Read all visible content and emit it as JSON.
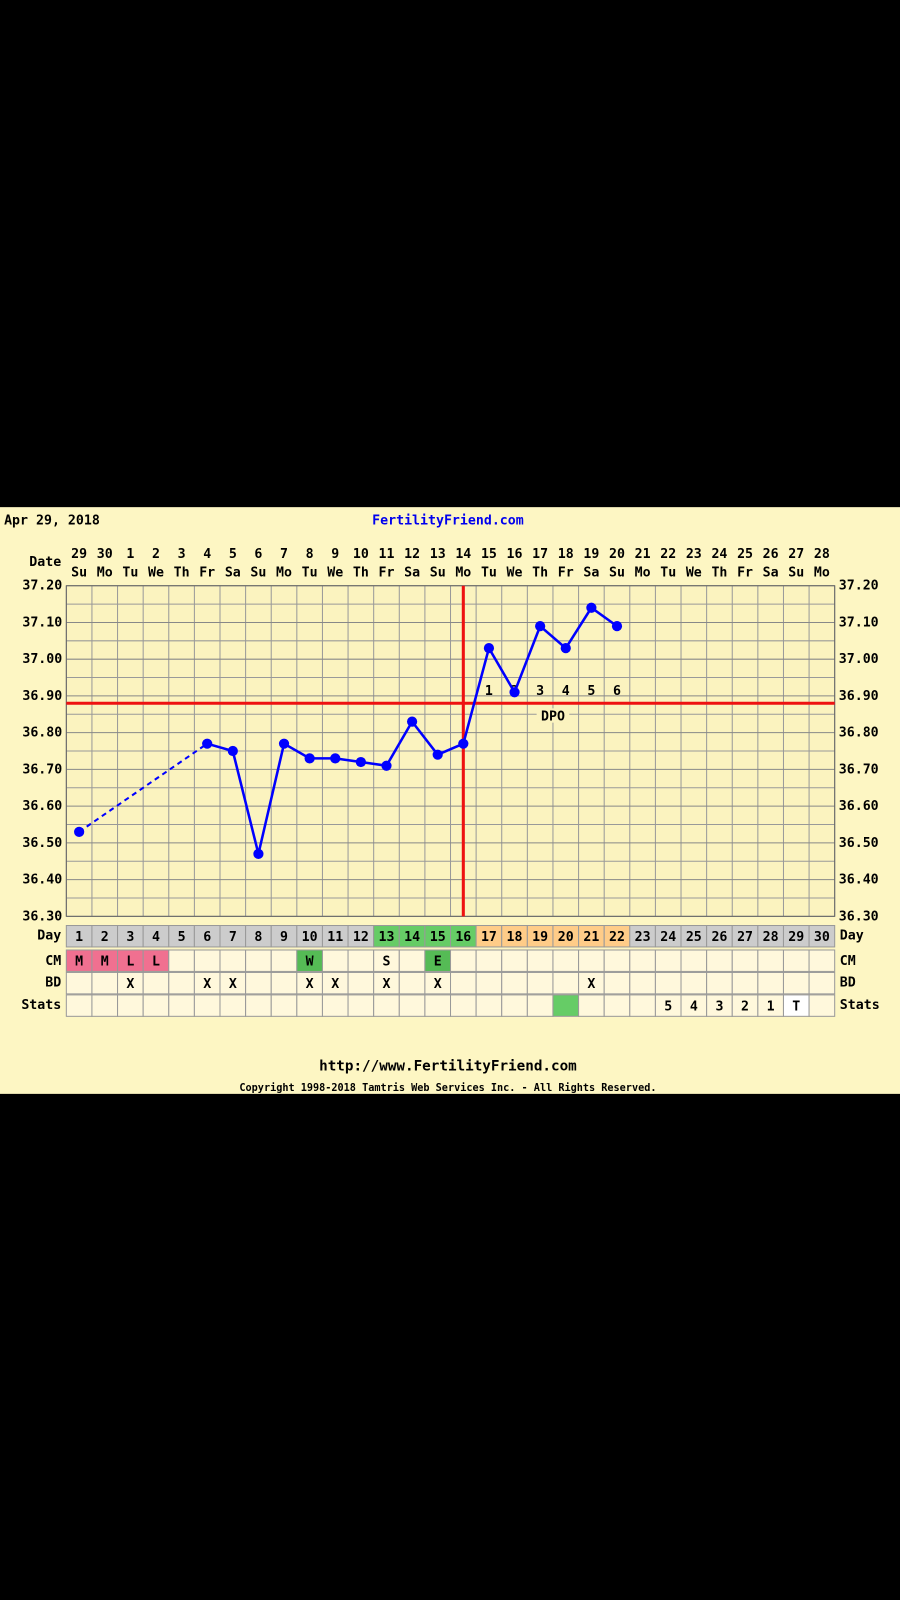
{
  "chart_data": {
    "type": "line",
    "date": "Apr 29, 2018",
    "title": "FertilityFriend.com",
    "dates": [
      "29",
      "30",
      "1",
      "2",
      "3",
      "4",
      "5",
      "6",
      "7",
      "8",
      "9",
      "10",
      "11",
      "12",
      "13",
      "14",
      "15",
      "16",
      "17",
      "18",
      "19",
      "20",
      "21",
      "22",
      "23",
      "24",
      "25",
      "26",
      "27",
      "28"
    ],
    "weekdays": [
      "Su",
      "Mo",
      "Tu",
      "We",
      "Th",
      "Fr",
      "Sa",
      "Su",
      "Mo",
      "Tu",
      "We",
      "Th",
      "Fr",
      "Sa",
      "Su",
      "Mo",
      "Tu",
      "We",
      "Th",
      "Fr",
      "Sa",
      "Su",
      "Mo",
      "Tu",
      "We",
      "Th",
      "Fr",
      "Sa",
      "Su",
      "Mo"
    ],
    "ylim": [
      36.3,
      37.2
    ],
    "yticks": [
      {
        "value": 36.3,
        "label": "36.30"
      },
      {
        "value": 36.4,
        "label": "36.40"
      },
      {
        "value": 36.5,
        "label": "36.50"
      },
      {
        "value": 36.6,
        "label": "36.60"
      },
      {
        "value": 36.7,
        "label": "36.70"
      },
      {
        "value": 36.8,
        "label": "36.80"
      },
      {
        "value": 36.9,
        "label": "36.90"
      },
      {
        "value": 37.0,
        "label": "37.00"
      },
      {
        "value": 37.1,
        "label": "37.10"
      },
      {
        "value": 37.2,
        "label": "37.20"
      }
    ],
    "grid": true,
    "series": [
      {
        "color": "#0000ff",
        "values": [
          36.53,
          null,
          null,
          null,
          null,
          36.77,
          36.75,
          36.47,
          36.77,
          36.73,
          36.73,
          36.72,
          36.71,
          36.83,
          36.74,
          36.77,
          37.03,
          36.91,
          37.09,
          37.03,
          37.14,
          37.09,
          null,
          null,
          null,
          null,
          null,
          null,
          null,
          null
        ]
      }
    ],
    "coverline": {
      "value": 36.88,
      "color": "#ee1111"
    },
    "ovulation_day": 16,
    "dpo": [
      null,
      null,
      null,
      null,
      null,
      null,
      null,
      null,
      null,
      null,
      null,
      null,
      null,
      null,
      null,
      null,
      1,
      2,
      3,
      4,
      5,
      6,
      null,
      null,
      null,
      null,
      null,
      null,
      null,
      null
    ],
    "dpo_label": "DPO",
    "row_labels": {
      "date": "Date",
      "day": "Day",
      "cm": "CM",
      "bd": "BD",
      "stats": "Stats"
    },
    "days": [
      1,
      2,
      3,
      4,
      5,
      6,
      7,
      8,
      9,
      10,
      11,
      12,
      13,
      14,
      15,
      16,
      17,
      18,
      19,
      20,
      21,
      22,
      23,
      24,
      25,
      26,
      27,
      28,
      29,
      30
    ],
    "day_colors": [
      "#cccccc",
      "#cccccc",
      "#cccccc",
      "#cccccc",
      "#cccccc",
      "#cccccc",
      "#cccccc",
      "#cccccc",
      "#cccccc",
      "#cccccc",
      "#cccccc",
      "#cccccc",
      "#66cc66",
      "#66cc66",
      "#66cc66",
      "#66cc66",
      "#ffcc88",
      "#ffcc88",
      "#ffcc88",
      "#ffcc88",
      "#ffcc88",
      "#ffcc88",
      "#cccccc",
      "#cccccc",
      "#cccccc",
      "#cccccc",
      "#cccccc",
      "#cccccc",
      "#cccccc",
      "#cccccc"
    ],
    "cm": [
      "M",
      "M",
      "L",
      "L",
      null,
      null,
      null,
      null,
      null,
      "W",
      null,
      null,
      "S",
      null,
      "E",
      null,
      null,
      null,
      null,
      null,
      null,
      null,
      null,
      null,
      null,
      null,
      null,
      null,
      null,
      null
    ],
    "cm_colors": [
      "#f07090",
      "#f07090",
      "#f07090",
      "#f07090",
      null,
      null,
      null,
      null,
      null,
      "#55bb55",
      null,
      null,
      null,
      null,
      "#55bb55",
      null,
      null,
      null,
      null,
      null,
      null,
      null,
      null,
      null,
      null,
      null,
      null,
      null,
      null,
      null
    ],
    "bd": [
      null,
      null,
      "X",
      null,
      null,
      "X",
      "X",
      null,
      null,
      "X",
      "X",
      null,
      "X",
      null,
      "X",
      null,
      null,
      null,
      null,
      null,
      "X",
      null,
      null,
      null,
      null,
      null,
      null,
      null,
      null,
      null
    ],
    "stats": [
      null,
      null,
      null,
      null,
      null,
      null,
      null,
      null,
      null,
      null,
      null,
      null,
      null,
      null,
      null,
      null,
      null,
      null,
      null,
      null,
      null,
      null,
      null,
      "5",
      "4",
      "3",
      "2",
      "1",
      "T",
      null
    ],
    "stats_colors": [
      null,
      null,
      null,
      null,
      null,
      null,
      null,
      null,
      null,
      null,
      null,
      null,
      null,
      null,
      null,
      null,
      null,
      null,
      null,
      "#66cc66",
      null,
      null,
      null,
      null,
      null,
      null,
      null,
      null,
      "#ffffff",
      null
    ],
    "footer_url": "http://www.FertilityFriend.com",
    "copyright": "Copyright 1998-2018 Tamtris Web Services Inc. - All Rights Reserved."
  }
}
